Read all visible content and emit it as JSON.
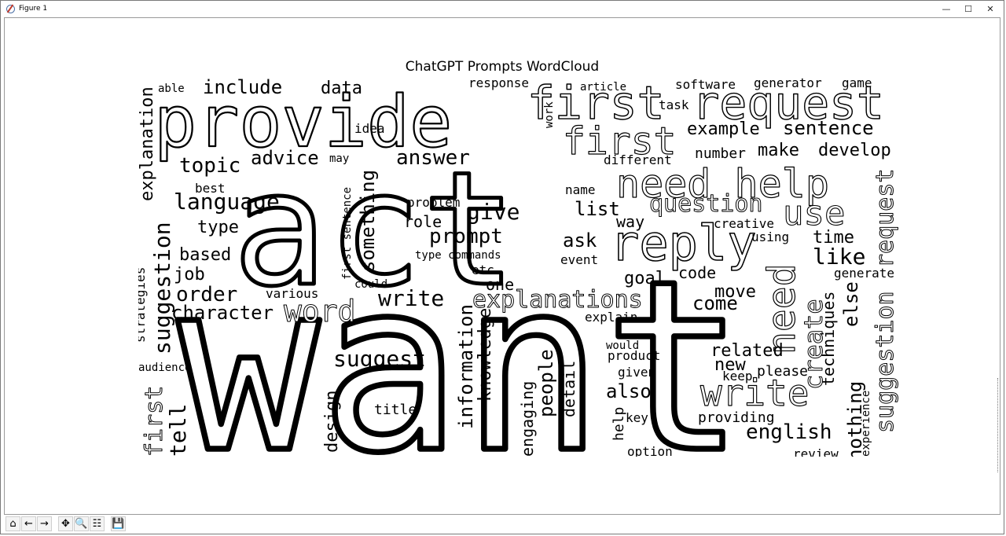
{
  "window": {
    "title": "Figure 1",
    "minimize": "—",
    "maximize": "☐",
    "close": "✕"
  },
  "plot": {
    "title": "ChatGPT Prompts WordCloud"
  },
  "toolbar": {
    "home": "⌂",
    "back": "←",
    "forward": "→",
    "pan": "✥",
    "zoom": "🔍",
    "configure": "☷",
    "save": "💾"
  },
  "chart_data": {
    "type": "wordcloud",
    "title": "ChatGPT Prompts WordCloud",
    "words": [
      "want",
      "act",
      "provide",
      "first request",
      "reply",
      "need help",
      "first",
      "use",
      "need",
      "write",
      "word",
      "explanations",
      "write",
      "suggestion",
      "request",
      "create",
      "language",
      "explanation",
      "first",
      "tell",
      "suggestion",
      "topic",
      "advice",
      "include",
      "data",
      "answer",
      "something",
      "give",
      "prompt",
      "role",
      "question",
      "list",
      "ask",
      "way",
      "time",
      "like",
      "make",
      "develop",
      "number",
      "example",
      "sentence",
      "software",
      "generator",
      "game",
      "task",
      "article",
      "response",
      "idea",
      "may",
      "able",
      "best",
      "type",
      "based",
      "job",
      "order",
      "character",
      "various",
      "could",
      "first sentence",
      "etc",
      "one",
      "type commands",
      "problem",
      "name",
      "different",
      "creative",
      "using",
      "code",
      "goal",
      "move",
      "come",
      "explain",
      "generate",
      "techniques",
      "else",
      "nothing",
      "english",
      "providing",
      "related",
      "new",
      "keep",
      "please",
      "given",
      "product",
      "would",
      "also",
      "help",
      "key",
      "option",
      "review",
      "experience",
      "detail",
      "people",
      "engaging",
      "knowledge",
      "information",
      "design",
      "title",
      "suggest",
      "strategies",
      "audience",
      "work",
      "event"
    ]
  }
}
